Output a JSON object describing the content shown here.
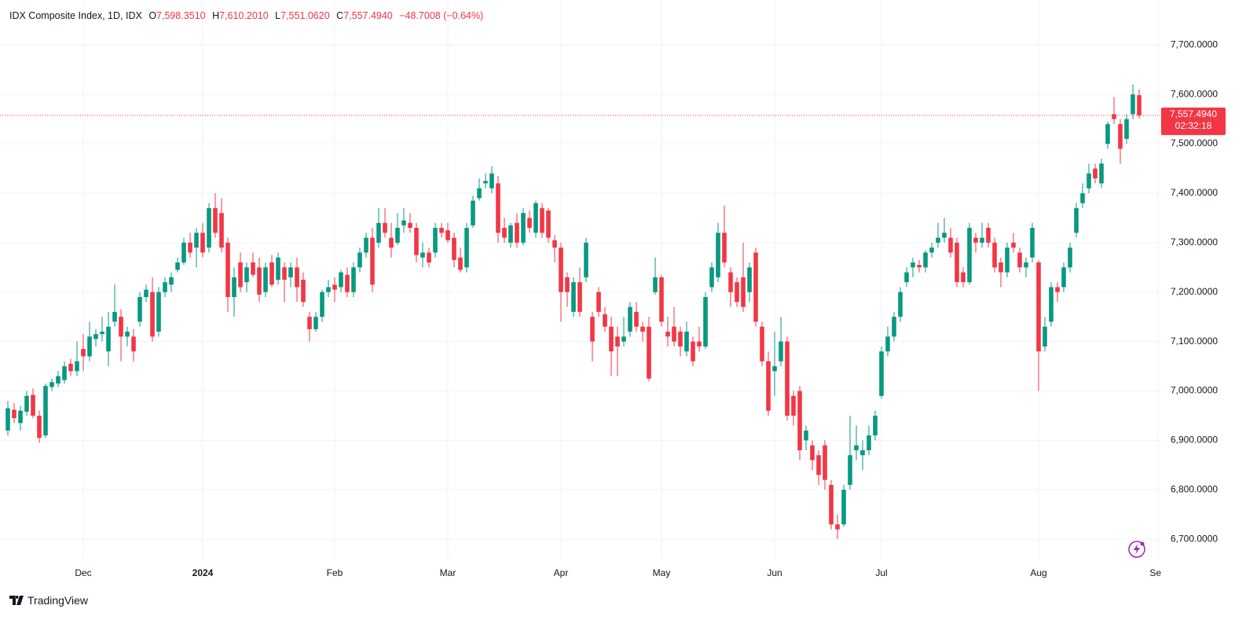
{
  "header": {
    "title": "IDX Composite Index, 1D, IDX",
    "ohlc": [
      {
        "label": "O",
        "value": "7,598.3510"
      },
      {
        "label": "H",
        "value": "7,610.2010"
      },
      {
        "label": "L",
        "value": "7,551.0620"
      },
      {
        "label": "C",
        "value": "7,557.4940"
      }
    ],
    "change": "−48.7008 (−0.64%)"
  },
  "footer": "TradingView",
  "chart_data": {
    "type": "candlestick",
    "up_color": "#089981",
    "down_color": "#f23645",
    "grid": true,
    "xlim": [
      -1.25,
      183.5
    ],
    "ylim": [
      6659,
      7791
    ],
    "xticks": [
      {
        "value": 12,
        "label": "Dec"
      },
      {
        "value": 31,
        "label": "2024"
      },
      {
        "value": 52,
        "label": "Feb"
      },
      {
        "value": 70,
        "label": "Mar"
      },
      {
        "value": 88,
        "label": "Apr"
      },
      {
        "value": 104,
        "label": "May"
      },
      {
        "value": 122,
        "label": "Jun"
      },
      {
        "value": 139,
        "label": "Jul"
      },
      {
        "value": 164,
        "label": "Aug"
      },
      {
        "value": 183,
        "label": "Sep"
      }
    ],
    "yticks": [
      {
        "value": 6700,
        "label": "6,700.0000"
      },
      {
        "value": 6800,
        "label": "6,800.0000"
      },
      {
        "value": 6900,
        "label": "6,900.0000"
      },
      {
        "value": 7000,
        "label": "7,000.0000"
      },
      {
        "value": 7100,
        "label": "7,100.0000"
      },
      {
        "value": 7200,
        "label": "7,200.0000"
      },
      {
        "value": 7300,
        "label": "7,300.0000"
      },
      {
        "value": 7400,
        "label": "7,400.0000"
      },
      {
        "value": 7500,
        "label": "7,500.0000"
      },
      {
        "value": 7600,
        "label": "7,600.0000"
      },
      {
        "value": 7700,
        "label": "7,700.0000"
      }
    ],
    "last_price": {
      "value": 7557.494,
      "label": "7,557.4940"
    },
    "countdown": "02:32:18",
    "ohlc": [
      [
        6920,
        6980,
        6910,
        6965
      ],
      [
        6962,
        6975,
        6935,
        6945
      ],
      [
        6935,
        6970,
        6920,
        6960
      ],
      [
        6958,
        7000,
        6950,
        6990
      ],
      [
        6992,
        7005,
        6945,
        6950
      ],
      [
        6950,
        6960,
        6895,
        6905
      ],
      [
        6910,
        7015,
        6905,
        7010
      ],
      [
        7008,
        7025,
        7000,
        7018
      ],
      [
        7015,
        7040,
        7008,
        7030
      ],
      [
        7022,
        7060,
        7015,
        7050
      ],
      [
        7055,
        7065,
        7030,
        7040
      ],
      [
        7040,
        7100,
        7030,
        7060
      ],
      [
        7085,
        7115,
        7040,
        7070
      ],
      [
        7070,
        7140,
        7060,
        7110
      ],
      [
        7105,
        7125,
        7090,
        7115
      ],
      [
        7115,
        7150,
        7100,
        7120
      ],
      [
        7080,
        7160,
        7050,
        7130
      ],
      [
        7140,
        7215,
        7130,
        7160
      ],
      [
        7150,
        7165,
        7060,
        7110
      ],
      [
        7110,
        7130,
        7090,
        7120
      ],
      [
        7110,
        7125,
        7060,
        7080
      ],
      [
        7140,
        7200,
        7130,
        7190
      ],
      [
        7190,
        7215,
        7180,
        7205
      ],
      [
        7200,
        7230,
        7100,
        7110
      ],
      [
        7120,
        7210,
        7110,
        7200
      ],
      [
        7200,
        7230,
        7190,
        7220
      ],
      [
        7215,
        7240,
        7200,
        7230
      ],
      [
        7245,
        7270,
        7240,
        7260
      ],
      [
        7260,
        7310,
        7255,
        7300
      ],
      [
        7300,
        7320,
        7270,
        7280
      ],
      [
        7290,
        7330,
        7250,
        7320
      ],
      [
        7320,
        7340,
        7270,
        7280
      ],
      [
        7290,
        7380,
        7280,
        7370
      ],
      [
        7370,
        7400,
        7310,
        7320
      ],
      [
        7360,
        7390,
        7280,
        7290
      ],
      [
        7300,
        7310,
        7160,
        7190
      ],
      [
        7190,
        7250,
        7150,
        7230
      ],
      [
        7260,
        7280,
        7200,
        7210
      ],
      [
        7220,
        7260,
        7200,
        7250
      ],
      [
        7260,
        7280,
        7230,
        7235
      ],
      [
        7250,
        7270,
        7180,
        7195
      ],
      [
        7200,
        7260,
        7190,
        7250
      ],
      [
        7260,
        7275,
        7210,
        7215
      ],
      [
        7225,
        7280,
        7215,
        7270
      ],
      [
        7250,
        7260,
        7180,
        7225
      ],
      [
        7230,
        7260,
        7210,
        7250
      ],
      [
        7250,
        7270,
        7180,
        7210
      ],
      [
        7225,
        7240,
        7170,
        7180
      ],
      [
        7150,
        7160,
        7100,
        7125
      ],
      [
        7125,
        7160,
        7120,
        7150
      ],
      [
        7150,
        7205,
        7140,
        7200
      ],
      [
        7200,
        7225,
        7190,
        7210
      ],
      [
        7215,
        7230,
        7180,
        7205
      ],
      [
        7210,
        7245,
        7200,
        7240
      ],
      [
        7235,
        7250,
        7190,
        7200
      ],
      [
        7200,
        7260,
        7190,
        7250
      ],
      [
        7250,
        7290,
        7240,
        7280
      ],
      [
        7280,
        7320,
        7270,
        7310
      ],
      [
        7310,
        7330,
        7200,
        7215
      ],
      [
        7300,
        7370,
        7290,
        7340
      ],
      [
        7340,
        7370,
        7310,
        7320
      ],
      [
        7310,
        7340,
        7270,
        7290
      ],
      [
        7300,
        7360,
        7295,
        7330
      ],
      [
        7335,
        7370,
        7320,
        7345
      ],
      [
        7340,
        7360,
        7320,
        7330
      ],
      [
        7330,
        7340,
        7260,
        7275
      ],
      [
        7270,
        7300,
        7250,
        7280
      ],
      [
        7280,
        7290,
        7250,
        7260
      ],
      [
        7280,
        7340,
        7270,
        7330
      ],
      [
        7330,
        7340,
        7310,
        7320
      ],
      [
        7325,
        7340,
        7300,
        7305
      ],
      [
        7310,
        7320,
        7250,
        7265
      ],
      [
        7270,
        7290,
        7240,
        7245
      ],
      [
        7250,
        7340,
        7240,
        7330
      ],
      [
        7335,
        7395,
        7330,
        7385
      ],
      [
        7390,
        7430,
        7385,
        7410
      ],
      [
        7420,
        7440,
        7410,
        7425
      ],
      [
        7410,
        7455,
        7400,
        7440
      ],
      [
        7420,
        7435,
        7300,
        7320
      ],
      [
        7330,
        7350,
        7300,
        7310
      ],
      [
        7300,
        7340,
        7290,
        7335
      ],
      [
        7340,
        7360,
        7290,
        7300
      ],
      [
        7300,
        7370,
        7295,
        7360
      ],
      [
        7350,
        7365,
        7320,
        7330
      ],
      [
        7320,
        7385,
        7310,
        7380
      ],
      [
        7370,
        7380,
        7310,
        7320
      ],
      [
        7365,
        7370,
        7300,
        7310
      ],
      [
        7305,
        7315,
        7260,
        7290
      ],
      [
        7290,
        7300,
        7140,
        7200
      ],
      [
        7230,
        7240,
        7170,
        7200
      ],
      [
        7160,
        7230,
        7150,
        7220
      ],
      [
        7220,
        7250,
        7150,
        7160
      ],
      [
        7230,
        7310,
        7220,
        7300
      ],
      [
        7150,
        7160,
        7060,
        7100
      ],
      [
        7200,
        7210,
        7150,
        7160
      ],
      [
        7155,
        7170,
        7120,
        7130
      ],
      [
        7130,
        7150,
        7030,
        7080
      ],
      [
        7110,
        7130,
        7030,
        7090
      ],
      [
        7100,
        7150,
        7090,
        7110
      ],
      [
        7120,
        7180,
        7110,
        7170
      ],
      [
        7160,
        7180,
        7120,
        7130
      ],
      [
        7130,
        7140,
        7100,
        7120
      ],
      [
        7130,
        7150,
        7020,
        7025
      ],
      [
        7200,
        7270,
        7195,
        7230
      ],
      [
        7230,
        7235,
        7130,
        7140
      ],
      [
        7120,
        7150,
        7090,
        7110
      ],
      [
        7130,
        7170,
        7090,
        7100
      ],
      [
        7120,
        7130,
        7070,
        7090
      ],
      [
        7080,
        7140,
        7070,
        7120
      ],
      [
        7100,
        7110,
        7050,
        7060
      ],
      [
        7100,
        7130,
        7080,
        7090
      ],
      [
        7090,
        7200,
        7085,
        7190
      ],
      [
        7210,
        7260,
        7200,
        7250
      ],
      [
        7230,
        7340,
        7220,
        7320
      ],
      [
        7320,
        7375,
        7250,
        7260
      ],
      [
        7240,
        7250,
        7170,
        7200
      ],
      [
        7220,
        7230,
        7170,
        7180
      ],
      [
        7230,
        7300,
        7160,
        7170
      ],
      [
        7200,
        7260,
        7180,
        7250
      ],
      [
        7280,
        7290,
        7130,
        7140
      ],
      [
        7130,
        7140,
        7050,
        7060
      ],
      [
        7060,
        7080,
        6950,
        6960
      ],
      [
        7040,
        7120,
        6990,
        7050
      ],
      [
        7060,
        7150,
        7050,
        7100
      ],
      [
        7100,
        7110,
        6940,
        6950
      ],
      [
        6990,
        7000,
        6930,
        6950
      ],
      [
        7000,
        7010,
        6860,
        6880
      ],
      [
        6900,
        6930,
        6880,
        6920
      ],
      [
        6890,
        6900,
        6840,
        6860
      ],
      [
        6870,
        6880,
        6810,
        6830
      ],
      [
        6890,
        6900,
        6800,
        6820
      ],
      [
        6810,
        6820,
        6720,
        6730
      ],
      [
        6730,
        6750,
        6700,
        6720
      ],
      [
        6730,
        6810,
        6725,
        6800
      ],
      [
        6810,
        6950,
        6800,
        6870
      ],
      [
        6880,
        6930,
        6860,
        6890
      ],
      [
        6870,
        6900,
        6840,
        6880
      ],
      [
        6880,
        6930,
        6870,
        6910
      ],
      [
        6910,
        6960,
        6900,
        6950
      ],
      [
        6990,
        7090,
        6985,
        7080
      ],
      [
        7080,
        7130,
        7070,
        7110
      ],
      [
        7110,
        7160,
        7100,
        7150
      ],
      [
        7150,
        7210,
        7140,
        7200
      ],
      [
        7220,
        7250,
        7210,
        7240
      ],
      [
        7250,
        7270,
        7230,
        7260
      ],
      [
        7255,
        7265,
        7240,
        7250
      ],
      [
        7250,
        7285,
        7240,
        7280
      ],
      [
        7280,
        7300,
        7270,
        7290
      ],
      [
        7300,
        7340,
        7290,
        7310
      ],
      [
        7310,
        7350,
        7300,
        7320
      ],
      [
        7310,
        7330,
        7270,
        7280
      ],
      [
        7300,
        7310,
        7210,
        7220
      ],
      [
        7240,
        7250,
        7210,
        7220
      ],
      [
        7220,
        7340,
        7215,
        7330
      ],
      [
        7310,
        7320,
        7280,
        7300
      ],
      [
        7300,
        7340,
        7290,
        7310
      ],
      [
        7330,
        7340,
        7290,
        7300
      ],
      [
        7300,
        7310,
        7240,
        7250
      ],
      [
        7260,
        7270,
        7210,
        7240
      ],
      [
        7240,
        7300,
        7230,
        7290
      ],
      [
        7300,
        7320,
        7280,
        7290
      ],
      [
        7280,
        7290,
        7240,
        7250
      ],
      [
        7250,
        7270,
        7230,
        7260
      ],
      [
        7270,
        7340,
        7260,
        7330
      ],
      [
        7260,
        7265,
        7000,
        7080
      ],
      [
        7090,
        7150,
        7080,
        7130
      ],
      [
        7140,
        7220,
        7130,
        7210
      ],
      [
        7210,
        7220,
        7180,
        7200
      ],
      [
        7210,
        7260,
        7200,
        7250
      ],
      [
        7250,
        7300,
        7240,
        7290
      ],
      [
        7320,
        7380,
        7310,
        7370
      ],
      [
        7380,
        7420,
        7370,
        7400
      ],
      [
        7410,
        7460,
        7400,
        7440
      ],
      [
        7450,
        7460,
        7420,
        7430
      ],
      [
        7420,
        7470,
        7410,
        7460
      ],
      [
        7500,
        7545,
        7490,
        7540
      ],
      [
        7560,
        7595,
        7540,
        7550
      ],
      [
        7540,
        7550,
        7460,
        7490
      ],
      [
        7510,
        7560,
        7500,
        7550
      ],
      [
        7560,
        7620,
        7550,
        7600
      ],
      [
        7598.351,
        7610.201,
        7551.062,
        7557.494
      ]
    ]
  }
}
